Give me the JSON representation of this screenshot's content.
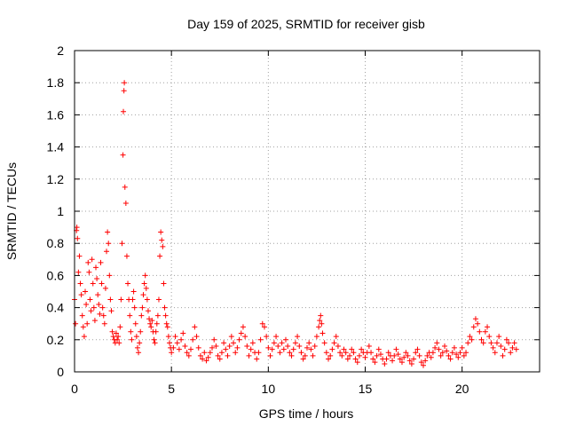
{
  "chart_data": {
    "type": "scatter",
    "title": "Day 159 of 2025, SRMTID for receiver gisb",
    "xlabel": "GPS time / hours",
    "ylabel": "SRMTID / TECUs",
    "xlim": [
      0,
      24
    ],
    "ylim": [
      0,
      2
    ],
    "xticks": [
      "0",
      "5",
      "10",
      "15",
      "20"
    ],
    "yticks": [
      "0",
      "0.2",
      "0.4",
      "0.6",
      "0.8",
      "1",
      "1.2",
      "1.4",
      "1.6",
      "1.8",
      "2"
    ],
    "grid": true,
    "marker": "+",
    "color": "#ff0000",
    "series": [
      {
        "name": "gisb",
        "points": [
          [
            0.0,
            0.45
          ],
          [
            0.05,
            0.3
          ],
          [
            0.1,
            0.88
          ],
          [
            0.12,
            0.9
          ],
          [
            0.15,
            0.83
          ],
          [
            0.2,
            0.62
          ],
          [
            0.25,
            0.72
          ],
          [
            0.3,
            0.55
          ],
          [
            0.35,
            0.48
          ],
          [
            0.4,
            0.35
          ],
          [
            0.45,
            0.28
          ],
          [
            0.5,
            0.22
          ],
          [
            0.55,
            0.5
          ],
          [
            0.6,
            0.42
          ],
          [
            0.65,
            0.3
          ],
          [
            0.7,
            0.68
          ],
          [
            0.75,
            0.62
          ],
          [
            0.8,
            0.45
          ],
          [
            0.85,
            0.38
          ],
          [
            0.9,
            0.7
          ],
          [
            0.95,
            0.55
          ],
          [
            1.0,
            0.4
          ],
          [
            1.05,
            0.32
          ],
          [
            1.1,
            0.65
          ],
          [
            1.15,
            0.58
          ],
          [
            1.2,
            0.48
          ],
          [
            1.25,
            0.42
          ],
          [
            1.3,
            0.36
          ],
          [
            1.35,
            0.68
          ],
          [
            1.4,
            0.55
          ],
          [
            1.45,
            0.4
          ],
          [
            1.5,
            0.35
          ],
          [
            1.55,
            0.3
          ],
          [
            1.6,
            0.52
          ],
          [
            1.65,
            0.75
          ],
          [
            1.7,
            0.87
          ],
          [
            1.75,
            0.8
          ],
          [
            1.8,
            0.6
          ],
          [
            1.85,
            0.45
          ],
          [
            1.9,
            0.38
          ],
          [
            1.95,
            0.25
          ],
          [
            2.0,
            0.22
          ],
          [
            2.05,
            0.2
          ],
          [
            2.1,
            0.18
          ],
          [
            2.15,
            0.24
          ],
          [
            2.2,
            0.2
          ],
          [
            2.25,
            0.22
          ],
          [
            2.3,
            0.18
          ],
          [
            2.35,
            0.28
          ],
          [
            2.4,
            0.45
          ],
          [
            2.45,
            0.8
          ],
          [
            2.5,
            1.35
          ],
          [
            2.52,
            1.62
          ],
          [
            2.55,
            1.75
          ],
          [
            2.57,
            1.8
          ],
          [
            2.6,
            1.15
          ],
          [
            2.65,
            1.05
          ],
          [
            2.7,
            0.72
          ],
          [
            2.75,
            0.55
          ],
          [
            2.8,
            0.45
          ],
          [
            2.85,
            0.35
          ],
          [
            2.9,
            0.25
          ],
          [
            2.95,
            0.2
          ],
          [
            3.0,
            0.45
          ],
          [
            3.05,
            0.5
          ],
          [
            3.1,
            0.4
          ],
          [
            3.15,
            0.3
          ],
          [
            3.2,
            0.22
          ],
          [
            3.25,
            0.15
          ],
          [
            3.3,
            0.12
          ],
          [
            3.35,
            0.18
          ],
          [
            3.4,
            0.25
          ],
          [
            3.45,
            0.35
          ],
          [
            3.5,
            0.4
          ],
          [
            3.55,
            0.48
          ],
          [
            3.6,
            0.55
          ],
          [
            3.65,
            0.6
          ],
          [
            3.7,
            0.52
          ],
          [
            3.75,
            0.45
          ],
          [
            3.8,
            0.38
          ],
          [
            3.85,
            0.33
          ],
          [
            3.9,
            0.3
          ],
          [
            3.95,
            0.28
          ],
          [
            4.0,
            0.32
          ],
          [
            4.05,
            0.25
          ],
          [
            4.1,
            0.2
          ],
          [
            4.15,
            0.18
          ],
          [
            4.2,
            0.25
          ],
          [
            4.25,
            0.3
          ],
          [
            4.3,
            0.35
          ],
          [
            4.35,
            0.45
          ],
          [
            4.4,
            0.72
          ],
          [
            4.45,
            0.87
          ],
          [
            4.5,
            0.82
          ],
          [
            4.55,
            0.78
          ],
          [
            4.6,
            0.55
          ],
          [
            4.65,
            0.4
          ],
          [
            4.7,
            0.35
          ],
          [
            4.75,
            0.3
          ],
          [
            4.8,
            0.28
          ],
          [
            4.85,
            0.22
          ],
          [
            4.9,
            0.18
          ],
          [
            4.95,
            0.15
          ],
          [
            5.0,
            0.12
          ],
          [
            5.1,
            0.15
          ],
          [
            5.2,
            0.22
          ],
          [
            5.3,
            0.18
          ],
          [
            5.4,
            0.14
          ],
          [
            5.5,
            0.2
          ],
          [
            5.6,
            0.24
          ],
          [
            5.7,
            0.16
          ],
          [
            5.8,
            0.12
          ],
          [
            5.9,
            0.1
          ],
          [
            6.0,
            0.14
          ],
          [
            6.1,
            0.2
          ],
          [
            6.2,
            0.28
          ],
          [
            6.3,
            0.22
          ],
          [
            6.4,
            0.15
          ],
          [
            6.5,
            0.1
          ],
          [
            6.6,
            0.08
          ],
          [
            6.7,
            0.12
          ],
          [
            6.8,
            0.07
          ],
          [
            6.9,
            0.09
          ],
          [
            7.0,
            0.12
          ],
          [
            7.1,
            0.15
          ],
          [
            7.2,
            0.2
          ],
          [
            7.3,
            0.16
          ],
          [
            7.4,
            0.1
          ],
          [
            7.5,
            0.08
          ],
          [
            7.6,
            0.12
          ],
          [
            7.7,
            0.18
          ],
          [
            7.8,
            0.14
          ],
          [
            7.9,
            0.1
          ],
          [
            8.0,
            0.16
          ],
          [
            8.1,
            0.22
          ],
          [
            8.2,
            0.18
          ],
          [
            8.3,
            0.12
          ],
          [
            8.4,
            0.15
          ],
          [
            8.5,
            0.2
          ],
          [
            8.6,
            0.24
          ],
          [
            8.7,
            0.28
          ],
          [
            8.8,
            0.22
          ],
          [
            8.9,
            0.16
          ],
          [
            9.0,
            0.1
          ],
          [
            9.1,
            0.14
          ],
          [
            9.2,
            0.18
          ],
          [
            9.3,
            0.12
          ],
          [
            9.4,
            0.08
          ],
          [
            9.5,
            0.12
          ],
          [
            9.6,
            0.2
          ],
          [
            9.7,
            0.3
          ],
          [
            9.8,
            0.28
          ],
          [
            9.9,
            0.22
          ],
          [
            10.0,
            0.15
          ],
          [
            10.1,
            0.1
          ],
          [
            10.2,
            0.14
          ],
          [
            10.3,
            0.18
          ],
          [
            10.4,
            0.22
          ],
          [
            10.5,
            0.16
          ],
          [
            10.6,
            0.12
          ],
          [
            10.7,
            0.18
          ],
          [
            10.8,
            0.14
          ],
          [
            10.9,
            0.2
          ],
          [
            11.0,
            0.16
          ],
          [
            11.1,
            0.12
          ],
          [
            11.2,
            0.1
          ],
          [
            11.3,
            0.14
          ],
          [
            11.4,
            0.18
          ],
          [
            11.5,
            0.22
          ],
          [
            11.6,
            0.16
          ],
          [
            11.7,
            0.12
          ],
          [
            11.8,
            0.08
          ],
          [
            11.9,
            0.1
          ],
          [
            12.0,
            0.15
          ],
          [
            12.1,
            0.18
          ],
          [
            12.2,
            0.14
          ],
          [
            12.3,
            0.1
          ],
          [
            12.4,
            0.16
          ],
          [
            12.5,
            0.22
          ],
          [
            12.6,
            0.28
          ],
          [
            12.65,
            0.32
          ],
          [
            12.7,
            0.35
          ],
          [
            12.75,
            0.3
          ],
          [
            12.8,
            0.24
          ],
          [
            12.9,
            0.18
          ],
          [
            13.0,
            0.12
          ],
          [
            13.1,
            0.08
          ],
          [
            13.2,
            0.1
          ],
          [
            13.3,
            0.14
          ],
          [
            13.4,
            0.18
          ],
          [
            13.5,
            0.22
          ],
          [
            13.6,
            0.16
          ],
          [
            13.7,
            0.12
          ],
          [
            13.8,
            0.1
          ],
          [
            13.9,
            0.14
          ],
          [
            14.0,
            0.12
          ],
          [
            14.1,
            0.08
          ],
          [
            14.2,
            0.1
          ],
          [
            14.3,
            0.14
          ],
          [
            14.4,
            0.12
          ],
          [
            14.5,
            0.08
          ],
          [
            14.6,
            0.06
          ],
          [
            14.7,
            0.1
          ],
          [
            14.8,
            0.14
          ],
          [
            14.9,
            0.12
          ],
          [
            15.0,
            0.09
          ],
          [
            15.1,
            0.12
          ],
          [
            15.2,
            0.16
          ],
          [
            15.3,
            0.12
          ],
          [
            15.4,
            0.08
          ],
          [
            15.5,
            0.06
          ],
          [
            15.6,
            0.1
          ],
          [
            15.7,
            0.14
          ],
          [
            15.8,
            0.11
          ],
          [
            15.9,
            0.08
          ],
          [
            16.0,
            0.05
          ],
          [
            16.1,
            0.08
          ],
          [
            16.2,
            0.12
          ],
          [
            16.3,
            0.1
          ],
          [
            16.4,
            0.07
          ],
          [
            16.5,
            0.1
          ],
          [
            16.6,
            0.14
          ],
          [
            16.7,
            0.11
          ],
          [
            16.8,
            0.08
          ],
          [
            16.9,
            0.06
          ],
          [
            17.0,
            0.09
          ],
          [
            17.1,
            0.12
          ],
          [
            17.2,
            0.1
          ],
          [
            17.3,
            0.07
          ],
          [
            17.4,
            0.05
          ],
          [
            17.5,
            0.08
          ],
          [
            17.6,
            0.12
          ],
          [
            17.7,
            0.14
          ],
          [
            17.8,
            0.1
          ],
          [
            17.9,
            0.06
          ],
          [
            18.0,
            0.04
          ],
          [
            18.1,
            0.07
          ],
          [
            18.2,
            0.1
          ],
          [
            18.3,
            0.12
          ],
          [
            18.4,
            0.09
          ],
          [
            18.5,
            0.12
          ],
          [
            18.6,
            0.15
          ],
          [
            18.7,
            0.18
          ],
          [
            18.8,
            0.14
          ],
          [
            18.9,
            0.1
          ],
          [
            19.0,
            0.12
          ],
          [
            19.1,
            0.16
          ],
          [
            19.2,
            0.13
          ],
          [
            19.3,
            0.1
          ],
          [
            19.4,
            0.08
          ],
          [
            19.5,
            0.12
          ],
          [
            19.6,
            0.15
          ],
          [
            19.7,
            0.11
          ],
          [
            19.8,
            0.09
          ],
          [
            19.9,
            0.12
          ],
          [
            20.0,
            0.15
          ],
          [
            20.1,
            0.1
          ],
          [
            20.2,
            0.12
          ],
          [
            20.3,
            0.18
          ],
          [
            20.4,
            0.22
          ],
          [
            20.5,
            0.2
          ],
          [
            20.6,
            0.28
          ],
          [
            20.7,
            0.33
          ],
          [
            20.8,
            0.3
          ],
          [
            20.9,
            0.25
          ],
          [
            21.0,
            0.2
          ],
          [
            21.1,
            0.18
          ],
          [
            21.2,
            0.25
          ],
          [
            21.3,
            0.28
          ],
          [
            21.4,
            0.22
          ],
          [
            21.5,
            0.18
          ],
          [
            21.6,
            0.15
          ],
          [
            21.7,
            0.12
          ],
          [
            21.8,
            0.18
          ],
          [
            21.9,
            0.22
          ],
          [
            22.0,
            0.16
          ],
          [
            22.1,
            0.1
          ],
          [
            22.2,
            0.14
          ],
          [
            22.3,
            0.2
          ],
          [
            22.4,
            0.18
          ],
          [
            22.5,
            0.12
          ],
          [
            22.6,
            0.15
          ],
          [
            22.7,
            0.18
          ],
          [
            22.8,
            0.14
          ]
        ]
      }
    ]
  }
}
